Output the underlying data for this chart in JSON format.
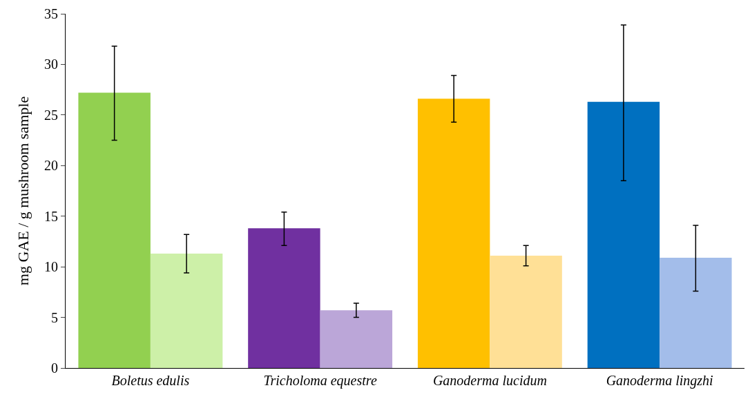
{
  "chart_data": {
    "type": "bar",
    "ylabel": "mg GAE / g mushroom sample",
    "categories": [
      "Boletus edulis",
      "Tricholoma equestre",
      "Ganoderma lucidum",
      "Ganoderma lingzhi"
    ],
    "series": [
      {
        "colors": [
          "#92d050",
          "#7030a0",
          "#ffc000",
          "#0070c0"
        ],
        "values": [
          27.2,
          13.8,
          26.6,
          26.3
        ],
        "errors": [
          [
            22.5,
            31.8
          ],
          [
            12.1,
            15.4
          ],
          [
            24.3,
            28.9
          ],
          [
            18.5,
            33.9
          ]
        ]
      },
      {
        "colors": [
          "#cdf0a8",
          "#bba6d8",
          "#ffe096",
          "#a3bdea"
        ],
        "values": [
          11.3,
          5.7,
          11.1,
          10.9
        ],
        "errors": [
          [
            9.4,
            13.2
          ],
          [
            5.0,
            6.4
          ],
          [
            10.1,
            12.1
          ],
          [
            7.6,
            14.1
          ]
        ]
      }
    ],
    "ylim": [
      0,
      35
    ],
    "yticks": [
      0,
      5,
      10,
      15,
      20,
      25,
      30,
      35
    ],
    "grid": false
  }
}
